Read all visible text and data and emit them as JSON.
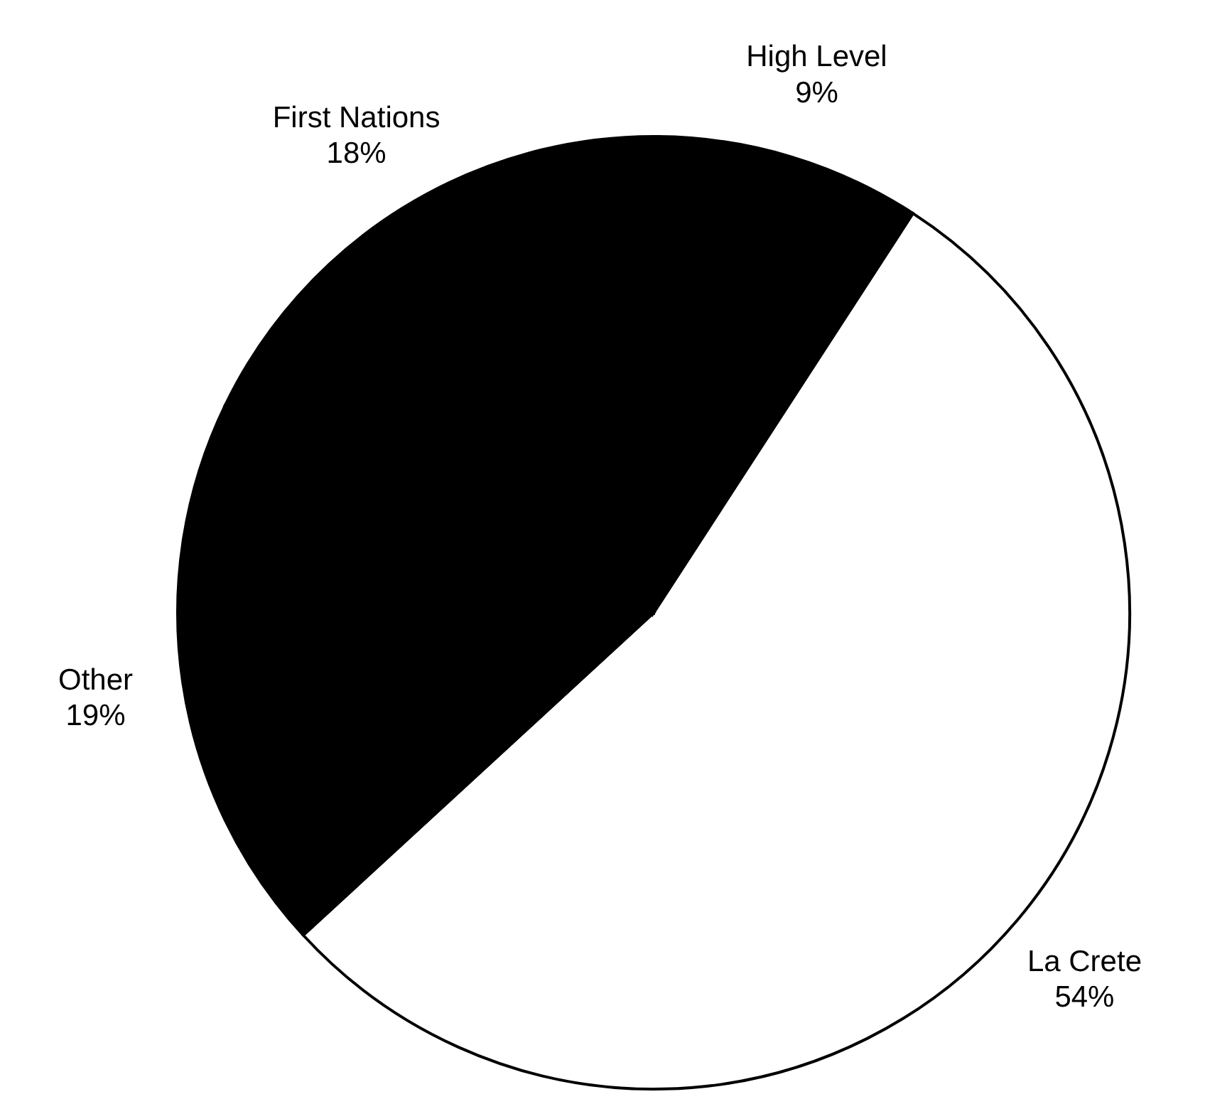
{
  "chart_data": {
    "type": "pie",
    "categories": [
      "La Crete",
      "Other",
      "First Nations",
      "High Level"
    ],
    "values": [
      54,
      19,
      18,
      9
    ],
    "colors": [
      "#ffffff",
      "#000000",
      "#000000",
      "#000000"
    ],
    "value_labels": [
      "54%",
      "19%",
      "18%",
      "9%"
    ]
  }
}
